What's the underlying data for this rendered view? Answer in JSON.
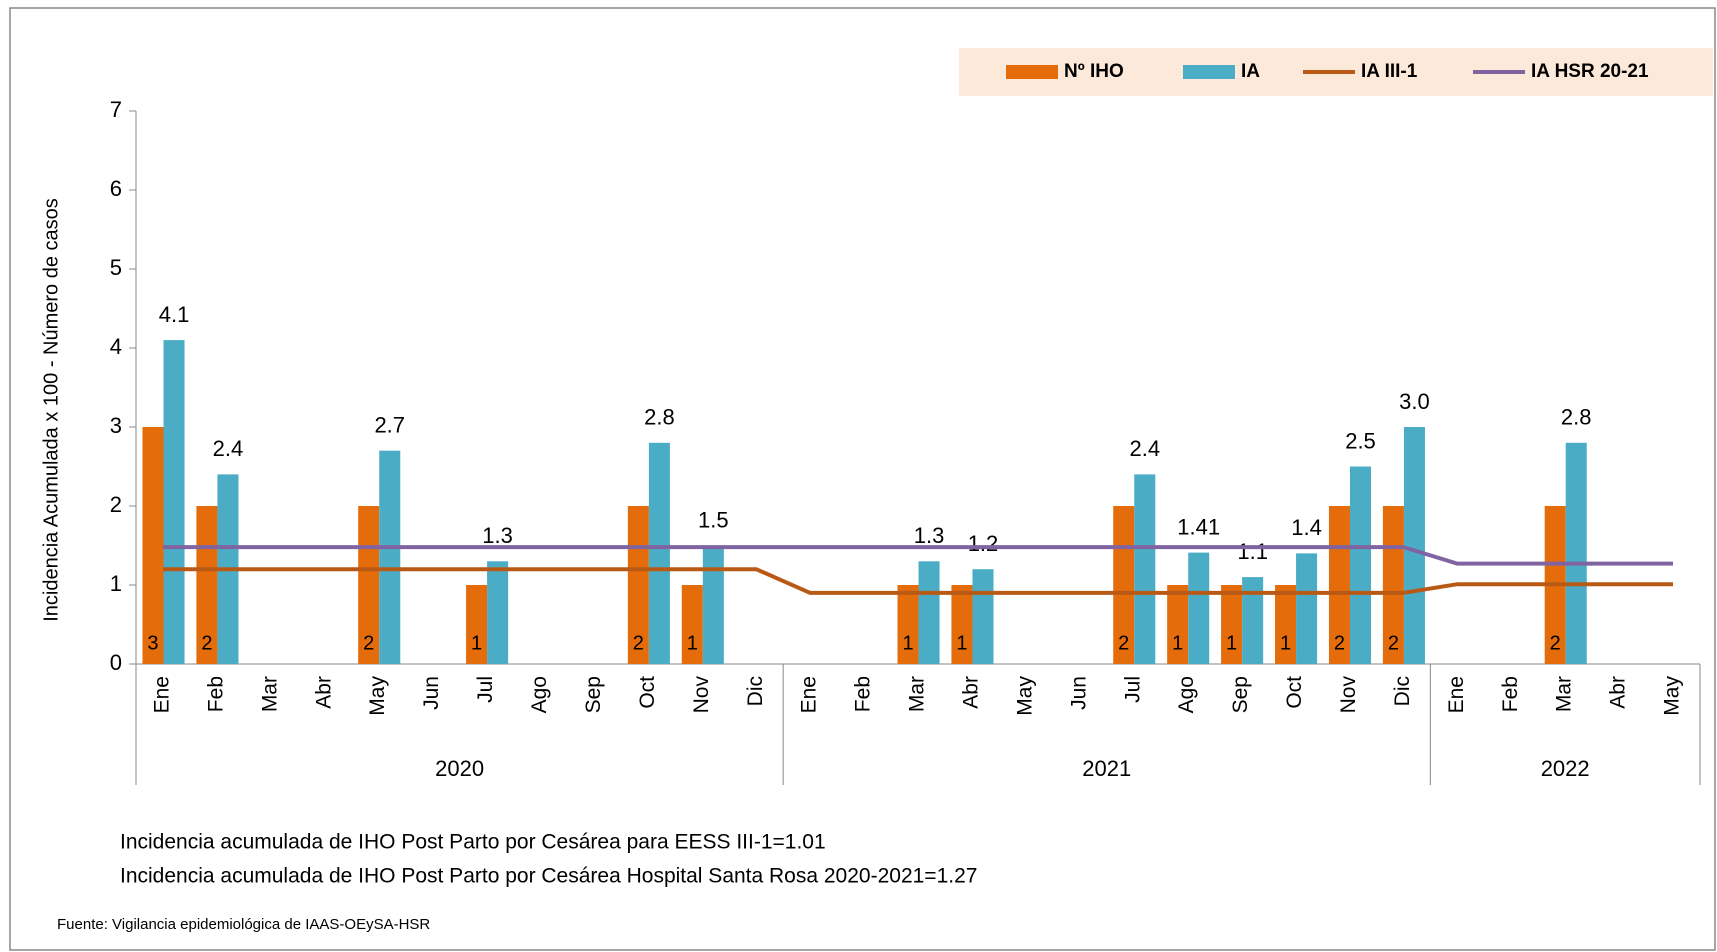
{
  "chart_data": {
    "type": "bar_line",
    "y_label": "Incidencia Acumulada x 100 - Número de casos",
    "categories": [
      "Ene",
      "Feb",
      "Mar",
      "Abr",
      "May",
      "Jun",
      "Jul",
      "Ago",
      "Sep",
      "Oct",
      "Nov",
      "Dic",
      "Ene",
      "Feb",
      "Mar",
      "Abr",
      "May",
      "Jun",
      "Jul",
      "Ago",
      "Sep",
      "Oct",
      "Nov",
      "Dic",
      "Ene",
      "Feb",
      "Mar",
      "Abr",
      "May"
    ],
    "x_groups": [
      "2020",
      "2021",
      "2022"
    ],
    "ylim": [
      0,
      7
    ],
    "yticks": [
      0,
      1,
      2,
      3,
      4,
      5,
      6,
      7
    ],
    "series": [
      {
        "name": "Nº IHO",
        "kind": "bar",
        "color": "#e46c0a",
        "values": [
          3,
          2,
          null,
          null,
          2,
          null,
          1,
          null,
          null,
          2,
          1,
          null,
          null,
          null,
          1,
          1,
          null,
          null,
          2,
          1,
          1,
          1,
          2,
          2,
          null,
          null,
          2,
          null,
          null
        ]
      },
      {
        "name": "IA",
        "kind": "bar",
        "color": "#4bacc6",
        "values": [
          4.1,
          2.4,
          null,
          null,
          2.7,
          null,
          1.3,
          null,
          null,
          2.8,
          1.5,
          null,
          null,
          null,
          1.3,
          1.2,
          null,
          null,
          2.4,
          1.41,
          1.1,
          1.4,
          2.5,
          3.0,
          null,
          null,
          2.8,
          null,
          null
        ],
        "value_labels": [
          "4.1",
          "2.4",
          null,
          null,
          "2.7",
          null,
          "1.3",
          null,
          null,
          "2.8",
          "1.5",
          null,
          null,
          null,
          "1.3",
          "1.2",
          null,
          null,
          "2.4",
          "1.41",
          "1.1",
          "1.4",
          "2.5",
          "3.0",
          null,
          null,
          "2.8",
          null,
          null
        ]
      },
      {
        "name": "IA III-1",
        "kind": "line",
        "color": "#b85a16",
        "values": [
          1.2,
          1.2,
          1.2,
          1.2,
          1.2,
          1.2,
          1.2,
          1.2,
          1.2,
          1.2,
          1.2,
          1.2,
          0.9,
          0.9,
          0.9,
          0.9,
          0.9,
          0.9,
          0.9,
          0.9,
          0.9,
          0.9,
          0.9,
          0.9,
          1.01,
          1.01,
          1.01,
          1.01,
          1.01
        ]
      },
      {
        "name": "IA HSR 20-21",
        "kind": "line",
        "color": "#8064a2",
        "values": [
          1.48,
          1.48,
          1.48,
          1.48,
          1.48,
          1.48,
          1.48,
          1.48,
          1.48,
          1.48,
          1.48,
          1.48,
          1.48,
          1.48,
          1.48,
          1.48,
          1.48,
          1.48,
          1.48,
          1.48,
          1.48,
          1.48,
          1.48,
          1.48,
          1.27,
          1.27,
          1.27,
          1.27,
          1.27
        ]
      }
    ],
    "notes": [
      "Incidencia acumulada de IHO Post Parto por Cesárea para EESS III-1=1.01",
      "Incidencia acumulada de IHO Post Parto por Cesárea Hospital Santa Rosa 2020-2021=1.27"
    ],
    "source": "Fuente: Vigilancia epidemiológica de IAAS-OEySA-HSR"
  }
}
